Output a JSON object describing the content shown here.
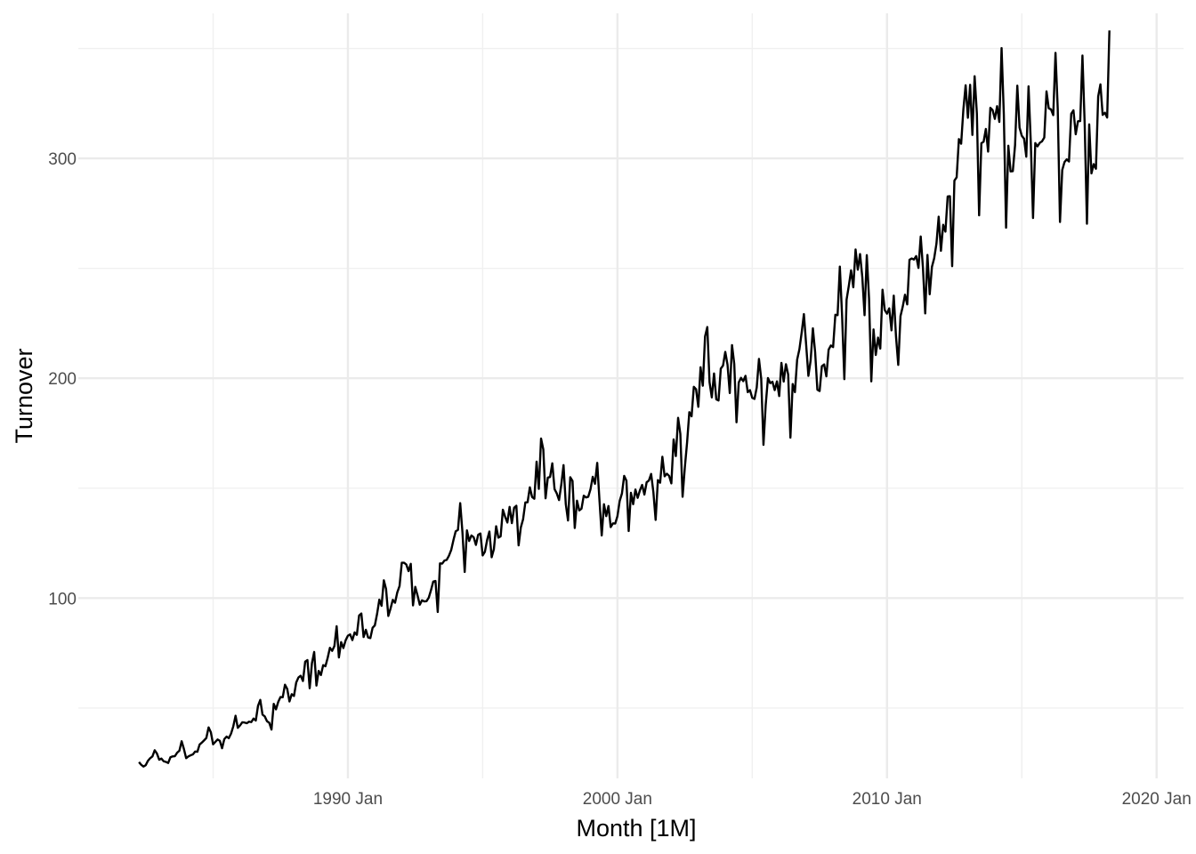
{
  "chart_data": {
    "type": "line",
    "title": "",
    "xlabel": "Month [1M]",
    "ylabel": "Turnover",
    "x_start": "1982 Apr",
    "x_end": "2018 Dec",
    "xlim": [
      "1980 Jan",
      "2021 Jan"
    ],
    "ylim": [
      18,
      366
    ],
    "x_ticks": [
      {
        "value": "1990 Jan",
        "label": "1990 Jan"
      },
      {
        "value": "2000 Jan",
        "label": "2000 Jan"
      },
      {
        "value": "2010 Jan",
        "label": "2010 Jan"
      },
      {
        "value": "2020 Jan",
        "label": "2020 Jan"
      }
    ],
    "x_minor_ticks": [
      "1985 Jan",
      "1995 Jan",
      "2005 Jan",
      "2015 Jan"
    ],
    "y_ticks": [
      100,
      200,
      300
    ],
    "y_minor_ticks": [
      50,
      150,
      250,
      350
    ],
    "grid": true,
    "legend": "none",
    "line_color": "#000000",
    "series": [
      {
        "values": [
          25.4,
          24.2,
          23.4,
          24.0,
          26.0,
          27.2,
          28.0,
          30.8,
          29.3,
          26.5,
          27.0,
          25.8,
          25.5,
          25.0,
          27.6,
          28.0,
          28.1,
          29.7,
          30.6,
          34.9,
          31.4,
          27.2,
          28.0,
          28.5,
          28.9,
          30.2,
          30.1,
          33.4,
          34.3,
          35.3,
          36.4,
          41.2,
          39.0,
          33.5,
          34.6,
          35.7,
          35.1,
          31.7,
          35.9,
          37.0,
          36.3,
          38.4,
          41.7,
          46.5,
          41.0,
          42.1,
          43.5,
          43.4,
          43.1,
          43.8,
          43.6,
          45.2,
          44.3,
          51.0,
          53.7,
          47.0,
          46.2,
          44.0,
          43.3,
          40.2,
          51.9,
          49.4,
          52.8,
          55.0,
          54.9,
          60.6,
          58.7,
          53.0,
          56.3,
          55.5,
          61.6,
          63.9,
          64.7,
          62.3,
          71.1,
          71.8,
          59.0,
          70.4,
          75.5,
          60.2,
          66.9,
          65.0,
          69.5,
          69.0,
          72.8,
          77.4,
          76.0,
          78.2,
          87.2,
          73.0,
          80.0,
          77.3,
          80.8,
          82.9,
          83.5,
          80.9,
          84.4,
          83.3,
          92.1,
          93.0,
          82.3,
          85.6,
          82.1,
          81.8,
          86.5,
          87.6,
          92.8,
          99.3,
          96.5,
          108.1,
          104.1,
          91.9,
          95.3,
          99.2,
          97.9,
          102.6,
          105.5,
          116.1,
          116.1,
          115.3,
          112.3,
          115.6,
          96.7,
          105.1,
          101.3,
          97.0,
          99.0,
          98.5,
          98.6,
          100.2,
          103.6,
          107.5,
          107.8,
          93.7,
          115.8,
          115.7,
          117.1,
          117.4,
          119.3,
          121.9,
          126.4,
          130.4,
          131.0,
          143.2,
          130.0,
          111.9,
          130.8,
          126.0,
          128.5,
          127.7,
          124.2,
          128.8,
          129.4,
          119.4,
          121.1,
          126.5,
          130.3,
          118.6,
          122.3,
          132.7,
          127.5,
          128.1,
          140.2,
          137.0,
          134.4,
          141.5,
          134.1,
          141.1,
          142.0,
          124.0,
          132.2,
          135.9,
          143.5,
          143.6,
          150.4,
          146.0,
          145.2,
          162.1,
          149.7,
          172.6,
          167.6,
          145.4,
          154.8,
          155.1,
          161.3,
          149.6,
          147.6,
          144.6,
          151.6,
          160.5,
          142.8,
          135.3,
          155.0,
          153.3,
          131.9,
          144.3,
          139.9,
          140.7,
          146.6,
          145.8,
          146.1,
          149.5,
          155.2,
          152.0,
          161.5,
          144.5,
          128.5,
          142.7,
          137.3,
          141.9,
          132.3,
          134.0,
          133.9,
          137.3,
          144.2,
          147.6,
          155.6,
          153.4,
          130.5,
          147.9,
          142.7,
          149.4,
          145.6,
          149.0,
          151.5,
          147.1,
          152.7,
          153.5,
          156.5,
          148.2,
          135.6,
          153.7,
          152.5,
          164.3,
          155.4,
          156.6,
          155.6,
          152.2,
          172.2,
          164.6,
          182.0,
          174.7,
          146.1,
          159.5,
          170.8,
          184.6,
          182.7,
          196.1,
          195.0,
          187.0,
          205.0,
          196.6,
          219.0,
          223.3,
          198.2,
          191.3,
          202.2,
          190.4,
          189.9,
          204.4,
          205.8,
          212.0,
          206.2,
          193.3,
          215.1,
          206.5,
          180.0,
          198.1,
          200.2,
          198.7,
          201.1,
          193.7,
          194.6,
          191.1,
          190.6,
          195.8,
          208.8,
          199.8,
          169.7,
          187.9,
          200.1,
          197.8,
          198.4,
          194.6,
          198.6,
          191.9,
          207.0,
          198.5,
          206.4,
          201.7,
          173.0,
          197.4,
          193.7,
          208.5,
          213.2,
          220.7,
          229.2,
          215.3,
          201.1,
          208.1,
          222.7,
          211.9,
          194.8,
          194.2,
          205.5,
          206.3,
          200.9,
          213.0,
          214.9,
          214.2,
          228.9,
          228.7,
          250.8,
          228.5,
          199.6,
          235.8,
          242.1,
          249.1,
          241.4,
          258.6,
          249.4,
          256.5,
          246.0,
          228.7,
          256.0,
          236.3,
          198.6,
          222.2,
          210.6,
          218.5,
          213.5,
          240.3,
          231.0,
          229.4,
          231.8,
          221.8,
          237.6,
          219.0,
          206.1,
          228.3,
          232.6,
          238.0,
          233.6,
          253.9,
          254.5,
          254.0,
          255.6,
          250.2,
          264.5,
          250.2,
          229.5,
          256.1,
          238.2,
          250.7,
          254.6,
          261.2,
          273.5,
          258.0,
          269.8,
          266.7,
          282.7,
          282.8,
          251.0,
          289.9,
          291.4,
          308.8,
          306.7,
          322.4,
          333.3,
          318.5,
          333.5,
          310.7,
          337.4,
          320.4,
          274.1,
          306.9,
          307.6,
          313.4,
          303.1,
          323.0,
          322.0,
          318.0,
          323.8,
          316.6,
          350.2,
          320.0,
          268.5,
          305.8,
          294.1,
          294.2,
          306.0,
          333.1,
          314.0,
          310.3,
          309.0,
          300.8,
          332.8,
          307.4,
          272.9,
          307.0,
          305.5,
          307.1,
          307.8,
          309.5,
          330.5,
          322.8,
          322.3,
          319.7,
          348.0,
          322.6,
          271.1,
          294.7,
          298.3,
          299.6,
          298.6,
          320.3,
          321.9,
          311.0,
          316.9,
          317.0,
          346.8,
          315.3,
          270.3,
          315.5,
          293.2,
          297.4,
          295.3,
          328.2,
          333.7,
          319.8,
          320.8,
          318.6,
          358.2
        ]
      }
    ]
  }
}
